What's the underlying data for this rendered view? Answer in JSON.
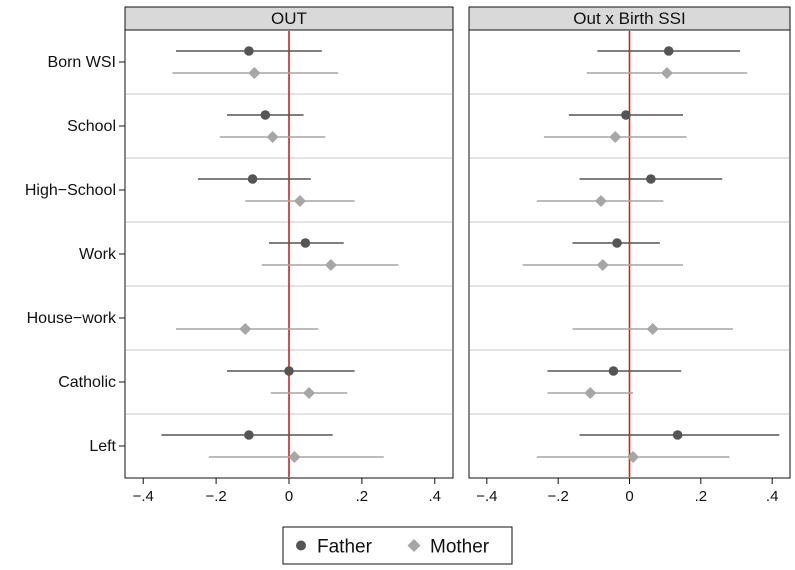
{
  "chart_data": {
    "type": "scatter",
    "subtype": "coefficient-plot-with-confidence-intervals",
    "categories": [
      "Born WSI",
      "School",
      "High−School",
      "Work",
      "House−work",
      "Catholic",
      "Left"
    ],
    "xlim": [
      -0.45,
      0.45
    ],
    "x_ticks": [
      -0.4,
      -0.2,
      0,
      0.2,
      0.4
    ],
    "x_tick_labels": [
      "−.4",
      "−.2",
      "0",
      ".2",
      ".4"
    ],
    "reference_line": {
      "x": 0,
      "color": "#cc2222"
    },
    "grid": "horizontal separators between categories",
    "legend": {
      "placement": "bottom-center",
      "entries": [
        {
          "label": "Father",
          "marker": "circle",
          "color": "#555555"
        },
        {
          "label": "Mother",
          "marker": "diamond",
          "color": "#a6a6a6"
        }
      ]
    },
    "panels": [
      {
        "title": "OUT",
        "series": [
          {
            "name": "Father",
            "points": [
              {
                "category": "Born WSI",
                "estimate": -0.11,
                "lower": -0.31,
                "upper": 0.09
              },
              {
                "category": "School",
                "estimate": -0.065,
                "lower": -0.17,
                "upper": 0.04
              },
              {
                "category": "High−School",
                "estimate": -0.1,
                "lower": -0.25,
                "upper": 0.06
              },
              {
                "category": "Work",
                "estimate": 0.045,
                "lower": -0.055,
                "upper": 0.15
              },
              {
                "category": "Catholic",
                "estimate": 0.0,
                "lower": -0.17,
                "upper": 0.18
              },
              {
                "category": "Left",
                "estimate": -0.11,
                "lower": -0.35,
                "upper": 0.12
              }
            ]
          },
          {
            "name": "Mother",
            "points": [
              {
                "category": "Born WSI",
                "estimate": -0.095,
                "lower": -0.32,
                "upper": 0.135
              },
              {
                "category": "School",
                "estimate": -0.045,
                "lower": -0.19,
                "upper": 0.1
              },
              {
                "category": "High−School",
                "estimate": 0.03,
                "lower": -0.12,
                "upper": 0.18
              },
              {
                "category": "Work",
                "estimate": 0.115,
                "lower": -0.075,
                "upper": 0.3
              },
              {
                "category": "House−work",
                "estimate": -0.12,
                "lower": -0.31,
                "upper": 0.08
              },
              {
                "category": "Catholic",
                "estimate": 0.055,
                "lower": -0.05,
                "upper": 0.16
              },
              {
                "category": "Left",
                "estimate": 0.015,
                "lower": -0.22,
                "upper": 0.26
              }
            ]
          }
        ]
      },
      {
        "title": "Out x Birth SSI",
        "series": [
          {
            "name": "Father",
            "points": [
              {
                "category": "Born WSI",
                "estimate": 0.11,
                "lower": -0.09,
                "upper": 0.31
              },
              {
                "category": "School",
                "estimate": -0.01,
                "lower": -0.17,
                "upper": 0.15
              },
              {
                "category": "High−School",
                "estimate": 0.06,
                "lower": -0.14,
                "upper": 0.26
              },
              {
                "category": "Work",
                "estimate": -0.035,
                "lower": -0.16,
                "upper": 0.085
              },
              {
                "category": "Catholic",
                "estimate": -0.045,
                "lower": -0.23,
                "upper": 0.145
              },
              {
                "category": "Left",
                "estimate": 0.135,
                "lower": -0.14,
                "upper": 0.42
              }
            ]
          },
          {
            "name": "Mother",
            "points": [
              {
                "category": "Born WSI",
                "estimate": 0.105,
                "lower": -0.12,
                "upper": 0.33
              },
              {
                "category": "School",
                "estimate": -0.04,
                "lower": -0.24,
                "upper": 0.16
              },
              {
                "category": "High−School",
                "estimate": -0.08,
                "lower": -0.26,
                "upper": 0.095
              },
              {
                "category": "Work",
                "estimate": -0.075,
                "lower": -0.3,
                "upper": 0.15
              },
              {
                "category": "House−work",
                "estimate": 0.065,
                "lower": -0.16,
                "upper": 0.29
              },
              {
                "category": "Catholic",
                "estimate": -0.11,
                "lower": -0.23,
                "upper": 0.01
              },
              {
                "category": "Left",
                "estimate": 0.01,
                "lower": -0.26,
                "upper": 0.28
              }
            ]
          }
        ]
      }
    ]
  }
}
